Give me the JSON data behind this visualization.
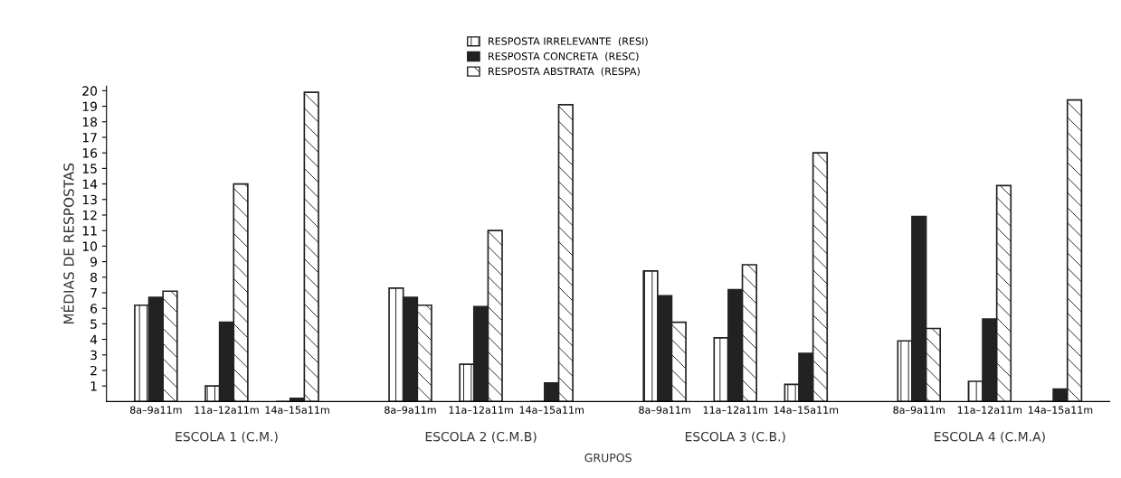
{
  "chart_data": {
    "type": "bar",
    "xlabel": "GRUPOS",
    "ylabel": "MÉDIAS DE RESPOSTAS",
    "categories": [
      "8a–9a11m",
      "11a–12a11m",
      "14a–15a11m",
      "8a–9a11m",
      "11a–12a11m",
      "14a–15a11m",
      "8a–9a11m",
      "11a–12a11m",
      "14a–15a11m",
      "8a–9a11m",
      "11a–12a11m",
      "14a–15a11m"
    ],
    "series": [
      {
        "name": "RESPOSTA IRRELEVANTE  (RESI)",
        "color": "#ffffff",
        "values": [
          6.2,
          1.0,
          null,
          7.3,
          2.4,
          null,
          8.4,
          4.1,
          1.1,
          3.9,
          1.3,
          null
        ]
      },
      {
        "name": "RESPOSTA CONCRETA  (RESC)",
        "color": "#222222",
        "values": [
          6.7,
          5.1,
          0.2,
          6.7,
          6.1,
          1.2,
          6.8,
          7.2,
          3.1,
          11.9,
          5.3,
          0.8
        ]
      },
      {
        "name": "RESPOSTA ABSTRATA  (RESPA)",
        "color": "#ffffff",
        "values": [
          7.1,
          14.0,
          19.9,
          6.2,
          11.0,
          19.1,
          5.1,
          8.8,
          16.0,
          4.7,
          13.9,
          19.4
        ]
      }
    ],
    "annotations": [
      "ESCOLA 1 (C.M.)",
      "ESCOLA 2 (C.M.B)",
      "ESCOLA 3 (C.B.)",
      "ESCOLA 4 (C.M.A)"
    ],
    "ylim": [
      0,
      20.3
    ],
    "yticks": [
      1,
      2,
      3,
      4,
      5,
      6,
      7,
      8,
      9,
      10,
      11,
      12,
      13,
      14,
      15,
      16,
      17,
      18,
      19,
      20
    ],
    "grid": false,
    "legend": "top"
  }
}
